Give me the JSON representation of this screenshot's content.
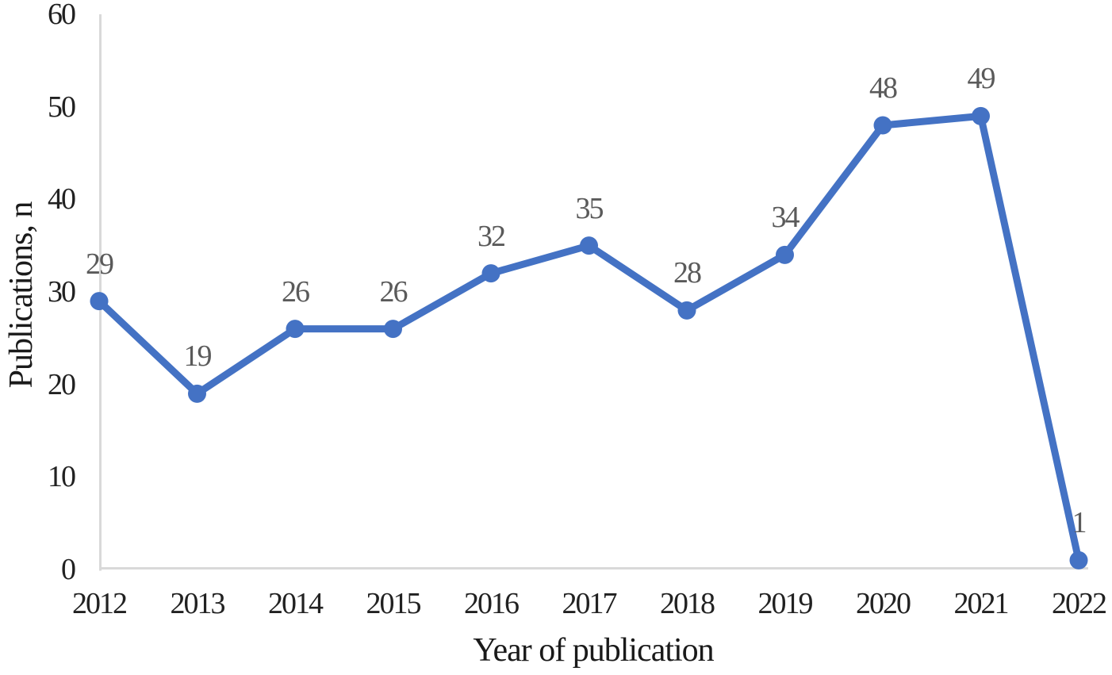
{
  "chart_data": {
    "type": "line",
    "title": "",
    "categories": [
      "2012",
      "2013",
      "2014",
      "2015",
      "2016",
      "2017",
      "2018",
      "2019",
      "2020",
      "2021",
      "2022"
    ],
    "series": [
      {
        "name": "Publications",
        "values": [
          29,
          19,
          26,
          26,
          32,
          35,
          28,
          34,
          48,
          49,
          1
        ]
      }
    ],
    "data_labels_shown": true,
    "xlabel": "Year of publication",
    "ylabel": "Publications, n",
    "ylim": [
      0,
      60
    ],
    "yticks": [
      0,
      10,
      20,
      30,
      40,
      50,
      60
    ],
    "grid": false,
    "legend": "none",
    "marker": "circle",
    "colors": {
      "line": "#4472C4",
      "marker": "#4472C4",
      "data_label": "#5A5A5A",
      "tick_label": "#212121",
      "axis_line": "#D9D9D9",
      "background": "#FFFFFF"
    }
  }
}
